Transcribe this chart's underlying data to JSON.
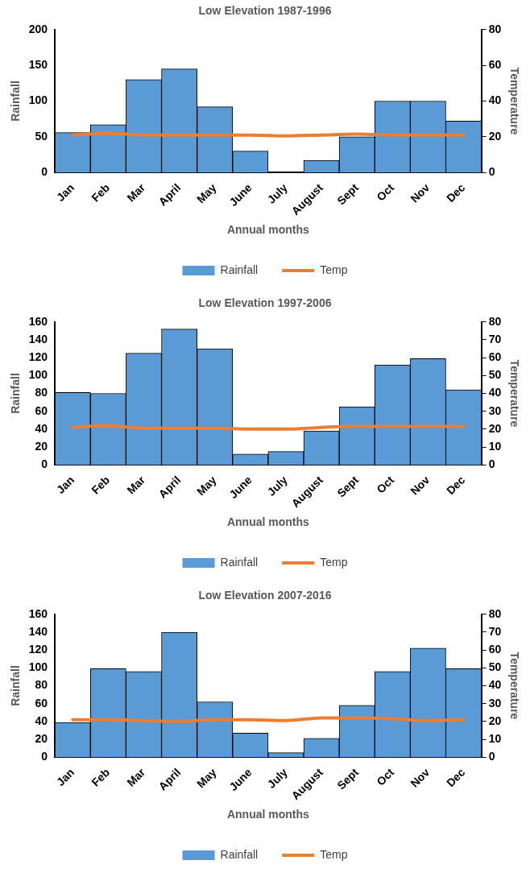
{
  "chart_data": [
    {
      "type": "bar",
      "title": "Low Elevation 1987-1996",
      "xlabel": "Annual months",
      "ylabel": "Rainfall",
      "y2label": "Temperature",
      "categories": [
        "Jan",
        "Feb",
        "Mar",
        "April",
        "May",
        "June",
        "July",
        "August",
        "Sept",
        "Oct",
        "Nov",
        "Dec"
      ],
      "series": [
        {
          "name": "Rainfall",
          "color": "#5b9bd5",
          "values": [
            56,
            67,
            130,
            145,
            92,
            30,
            0,
            17,
            50,
            100,
            100,
            72
          ]
        },
        {
          "name": "Temp",
          "type": "line",
          "axis": "y2",
          "color": "#ed7d31",
          "values": [
            21,
            22,
            21,
            21,
            21,
            21,
            20.5,
            21,
            21.5,
            21,
            21,
            21
          ]
        }
      ],
      "ylim": [
        0,
        200
      ],
      "yticks": [
        0,
        50,
        100,
        150,
        200
      ],
      "y2lim": [
        0,
        80
      ],
      "y2ticks": [
        0,
        20,
        40,
        60,
        80
      ],
      "grid": false,
      "legend": "bottom",
      "marker": "none"
    },
    {
      "type": "bar",
      "title": "Low Elevation 1997-2006",
      "xlabel": "Annual months",
      "ylabel": "Rainfall",
      "y2label": "Temperature",
      "categories": [
        "Jan",
        "Feb",
        "Mar",
        "April",
        "May",
        "June",
        "July",
        "August",
        "Sept",
        "Oct",
        "Nov",
        "Dec"
      ],
      "series": [
        {
          "name": "Rainfall",
          "color": "#5b9bd5",
          "values": [
            81,
            80,
            125,
            152,
            130,
            12,
            15,
            38,
            65,
            112,
            119,
            84
          ]
        },
        {
          "name": "Temp",
          "type": "line",
          "axis": "y2",
          "color": "#ed7d31",
          "values": [
            21,
            22,
            20.5,
            20.5,
            20.5,
            20,
            20,
            21,
            21.5,
            21.5,
            21.5,
            21.5
          ]
        }
      ],
      "ylim": [
        0,
        160
      ],
      "yticks": [
        0,
        20,
        40,
        60,
        80,
        100,
        120,
        140,
        160
      ],
      "y2lim": [
        0,
        80
      ],
      "y2ticks": [
        0,
        10,
        20,
        30,
        40,
        50,
        60,
        70,
        80
      ],
      "grid": false,
      "legend": "bottom",
      "marker": "none"
    },
    {
      "type": "bar",
      "title": "Low Elevation 2007-2016",
      "xlabel": "Annual months",
      "ylabel": "Rainfall",
      "y2label": "Temperature",
      "categories": [
        "Jan",
        "Feb",
        "Mar",
        "April",
        "May",
        "June",
        "July",
        "August",
        "Sept",
        "Oct",
        "Nov",
        "Dec"
      ],
      "series": [
        {
          "name": "Rainfall",
          "color": "#5b9bd5",
          "values": [
            39,
            99,
            96,
            140,
            62,
            27,
            5,
            21,
            58,
            96,
            122,
            99
          ]
        },
        {
          "name": "Temp",
          "type": "line",
          "axis": "y2",
          "color": "#ed7d31",
          "values": [
            21,
            21,
            20.5,
            20,
            21,
            21,
            20.5,
            22,
            22,
            21.5,
            20.5,
            21
          ]
        }
      ],
      "ylim": [
        0,
        160
      ],
      "yticks": [
        0,
        20,
        40,
        60,
        80,
        100,
        120,
        140,
        160
      ],
      "y2lim": [
        0,
        80
      ],
      "y2ticks": [
        0,
        10,
        20,
        30,
        40,
        50,
        60,
        70,
        80
      ],
      "grid": false,
      "legend": "bottom",
      "marker": "none"
    }
  ]
}
